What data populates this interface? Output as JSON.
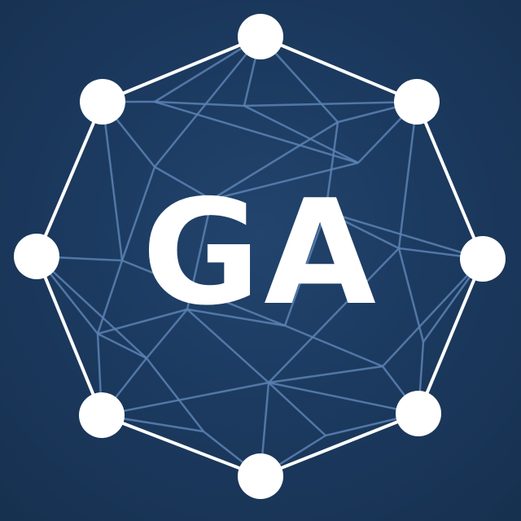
{
  "logo": {
    "text": "GA",
    "background_color": "#1e3a5f",
    "outline_color": "#ffffff",
    "mesh_color": "#5b82b3",
    "node_color": "#ffffff"
  }
}
